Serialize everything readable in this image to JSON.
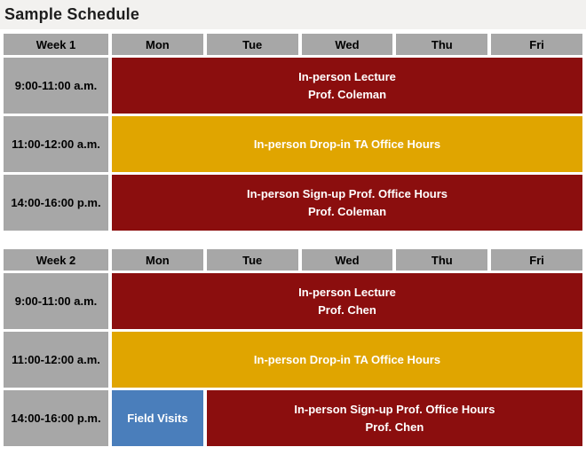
{
  "page": {
    "title": "Sample Schedule"
  },
  "colors": {
    "maroon": "#8b0e0e",
    "gold": "#e0a500",
    "blue": "#4a7ebb",
    "gray": "#a7a7a7",
    "titlebar": "#f2f1ef",
    "pagebg": "#ffffff"
  },
  "tables": [
    {
      "week_label": "Week 1",
      "days": [
        "Mon",
        "Tue",
        "Wed",
        "Thu",
        "Fri"
      ],
      "rows": [
        {
          "time": "9:00-11:00 a.m.",
          "blocks": [
            {
              "span": 5,
              "color": "maroon",
              "lines": [
                "In-person Lecture",
                "Prof. Coleman"
              ]
            }
          ]
        },
        {
          "time": "11:00-12:00 a.m.",
          "blocks": [
            {
              "span": 5,
              "color": "gold",
              "lines": [
                "In-person Drop-in TA Office Hours"
              ]
            }
          ]
        },
        {
          "time": "14:00-16:00 p.m.",
          "blocks": [
            {
              "span": 5,
              "color": "maroon",
              "lines": [
                "In-person Sign-up Prof. Office Hours",
                "Prof. Coleman"
              ]
            }
          ]
        }
      ]
    },
    {
      "week_label": "Week 2",
      "days": [
        "Mon",
        "Tue",
        "Wed",
        "Thu",
        "Fri"
      ],
      "rows": [
        {
          "time": "9:00-11:00 a.m.",
          "blocks": [
            {
              "span": 5,
              "color": "maroon",
              "lines": [
                "In-person Lecture",
                "Prof. Chen"
              ]
            }
          ]
        },
        {
          "time": "11:00-12:00 a.m.",
          "blocks": [
            {
              "span": 5,
              "color": "gold",
              "lines": [
                "In-person Drop-in TA Office Hours"
              ]
            }
          ]
        },
        {
          "time": "14:00-16:00 p.m.",
          "blocks": [
            {
              "span": 1,
              "color": "blue",
              "lines": [
                "Field Visits"
              ]
            },
            {
              "span": 4,
              "color": "maroon",
              "lines": [
                "In-person Sign-up Prof. Office Hours",
                "Prof. Chen"
              ]
            }
          ]
        }
      ]
    }
  ]
}
